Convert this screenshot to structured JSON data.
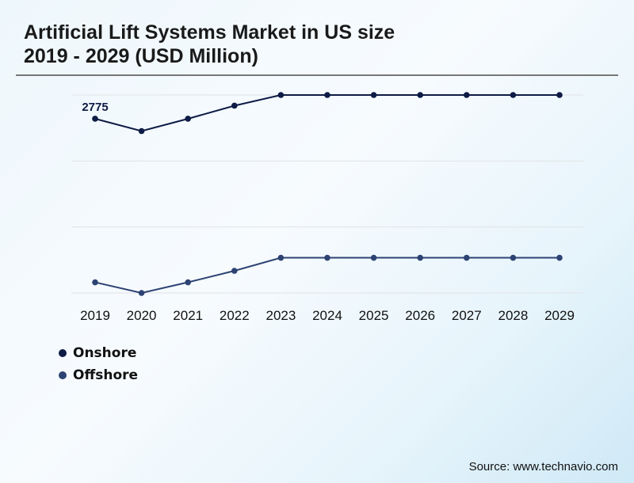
{
  "title_line1": "Artificial Lift Systems Market in US size",
  "title_line2": "2019 - 2029 (USD Million)",
  "source": "Source: www.technavio.com",
  "chart_data": {
    "type": "line",
    "categories": [
      "2019",
      "2020",
      "2021",
      "2022",
      "2023",
      "2024",
      "2025",
      "2026",
      "2027",
      "2028",
      "2029"
    ],
    "series": [
      {
        "name": "Onshore",
        "color": "#0d1b45",
        "values": [
          2775,
          2579,
          2775,
          2983,
          3153,
          3153,
          3153,
          3153,
          3153,
          3153,
          3153
        ]
      },
      {
        "name": "Offshore",
        "color": "#2d4373",
        "values": [
          170,
          0,
          170,
          353,
          561,
          561,
          561,
          561,
          561,
          561,
          561
        ]
      }
    ],
    "data_labels": [
      {
        "series": "Onshore",
        "category": "2019",
        "text": "2775"
      }
    ],
    "ylim": [
      0,
      3153
    ],
    "y_gridlines": 4,
    "grid": true,
    "legend": "bottom-left"
  }
}
